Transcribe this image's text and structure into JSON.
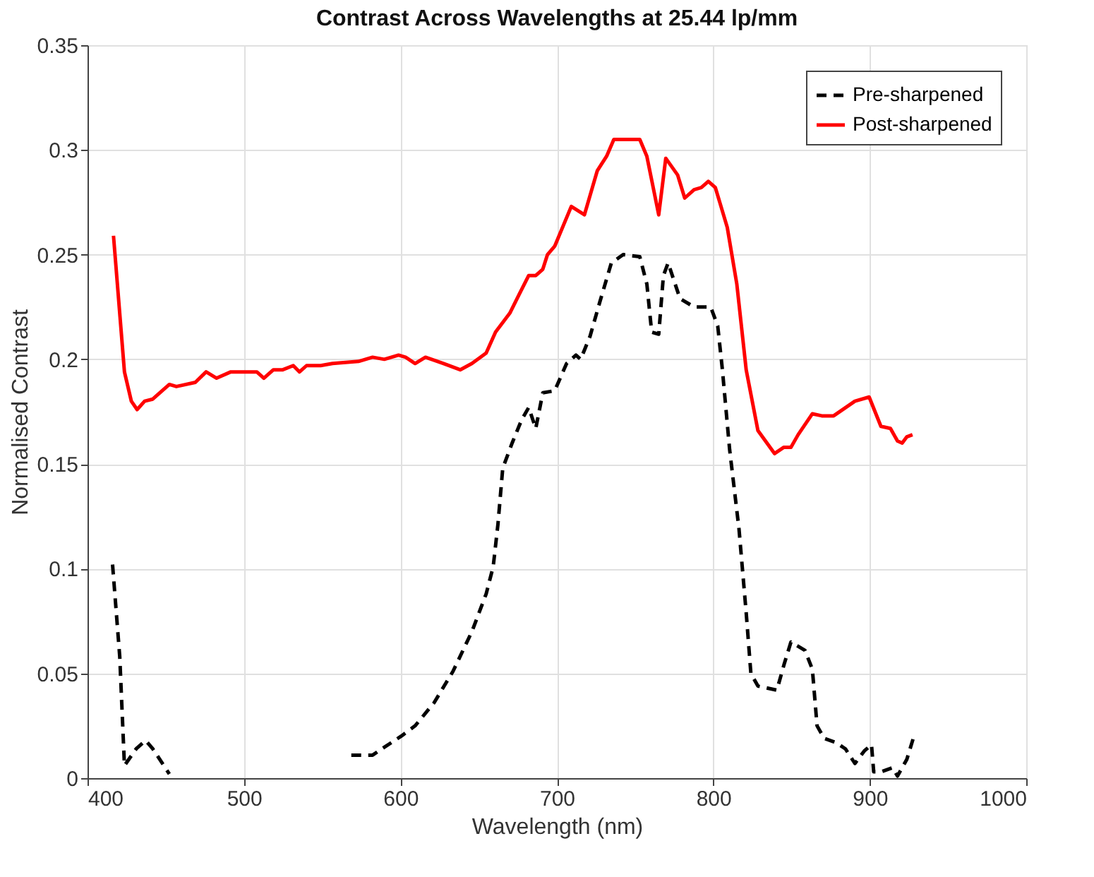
{
  "chart_data": {
    "type": "line",
    "title": "Contrast Across Wavelengths at 25.44 lp/mm",
    "xlabel": "Wavelength (nm)",
    "ylabel": "Normalised Contrast",
    "xlim": [
      400,
      1000
    ],
    "xticks": [
      400,
      500,
      600,
      700,
      800,
      900,
      1000
    ],
    "ylim": [
      0,
      0.35
    ],
    "yticks": [
      0,
      0.05,
      0.1,
      0.15,
      0.2,
      0.25,
      0.3,
      0.35
    ],
    "grid": true,
    "legend": "top right",
    "marker": "none",
    "series": [
      {
        "name": "Pre-sharpened",
        "color": "#000000",
        "line_style": "dashed",
        "x": [
          416,
          420.6,
          423.6,
          431.1,
          437.2,
          441.7,
          452.3,
          500,
          568.6,
          582.2,
          588.2,
          600.4,
          609.4,
          621.5,
          633.6,
          645.7,
          654.8,
          659.3,
          662.3,
          665.4,
          671.4,
          677.4,
          682,
          686.5,
          691,
          698.6,
          706.2,
          712.2,
          715.2,
          721.2,
          727.3,
          734.8,
          742.4,
          753,
          757.5,
          760.6,
          765.1,
          768.1,
          771.1,
          778.7,
          787.7,
          798.3,
          802.8,
          805.8,
          810.4,
          816.4,
          821,
          824,
          828.5,
          834.6,
          840.6,
          845.1,
          849.6,
          858.6,
          863.3,
          866.3,
          870.8,
          878.4,
          884.4,
          890.5,
          896.5,
          901.1,
          902.5,
          907.1,
          914.6,
          917.7,
          923.7,
          928.2
        ],
        "values": [
          0.102,
          0.058,
          0.006,
          0.014,
          0.018,
          0.014,
          0.002,
          null,
          0.011,
          0.011,
          0.014,
          0.02,
          0.025,
          0.036,
          0.051,
          0.07,
          0.088,
          0.101,
          0.121,
          0.148,
          0.16,
          0.171,
          0.177,
          0.167,
          0.184,
          0.185,
          0.198,
          0.202,
          0.2,
          0.211,
          0.227,
          0.246,
          0.25,
          0.249,
          0.236,
          0.213,
          0.212,
          0.24,
          0.246,
          0.229,
          0.225,
          0.225,
          0.216,
          0.195,
          0.157,
          0.119,
          0.079,
          0.05,
          0.044,
          0.043,
          0.042,
          0.054,
          0.065,
          0.061,
          0.052,
          0.025,
          0.019,
          0.017,
          0.014,
          0.007,
          0.013,
          0.016,
          0.003,
          0.003,
          0.005,
          0.001,
          0.009,
          0.02
        ]
      },
      {
        "name": "Post-sharpened",
        "color": "#ff0000",
        "line_style": "solid",
        "x": [
          416.6,
          423.6,
          428,
          431.7,
          436.5,
          441.7,
          452.3,
          456.8,
          468.9,
          475.8,
          482.5,
          491.6,
          508.2,
          512.7,
          518.8,
          524.8,
          531.5,
          535.5,
          540,
          549,
          556.6,
          573.2,
          582.2,
          589.7,
          598.8,
          603.3,
          609.4,
          616,
          627.6,
          638.2,
          645.7,
          654.8,
          660.8,
          669.9,
          675.9,
          682,
          686.5,
          691,
          694,
          698.6,
          709.2,
          717.6,
          725.8,
          731.8,
          736.4,
          740.9,
          753,
          757.5,
          765.1,
          769.6,
          777.2,
          781.7,
          787.7,
          792.3,
          796.8,
          801.3,
          808.9,
          815,
          821,
          828.5,
          839.1,
          845.1,
          849.6,
          854.2,
          863.3,
          869.3,
          876.9,
          890.5,
          899.6,
          907.1,
          913.2,
          917.7,
          920.7,
          923.7,
          927.3
        ],
        "values": [
          0.259,
          0.194,
          0.18,
          0.176,
          0.18,
          0.181,
          0.188,
          0.187,
          0.189,
          0.194,
          0.191,
          0.194,
          0.194,
          0.191,
          0.195,
          0.195,
          0.197,
          0.194,
          0.197,
          0.197,
          0.198,
          0.199,
          0.201,
          0.2,
          0.202,
          0.201,
          0.198,
          0.201,
          0.198,
          0.195,
          0.198,
          0.203,
          0.213,
          0.222,
          0.231,
          0.24,
          0.24,
          0.243,
          0.25,
          0.254,
          0.273,
          0.269,
          0.29,
          0.297,
          0.305,
          0.305,
          0.305,
          0.297,
          0.269,
          0.296,
          0.288,
          0.277,
          0.281,
          0.282,
          0.285,
          0.282,
          0.263,
          0.236,
          0.195,
          0.166,
          0.155,
          0.158,
          0.158,
          0.164,
          0.174,
          0.173,
          0.173,
          0.18,
          0.182,
          0.168,
          0.167,
          0.161,
          0.16,
          0.163,
          0.164
        ]
      }
    ]
  }
}
